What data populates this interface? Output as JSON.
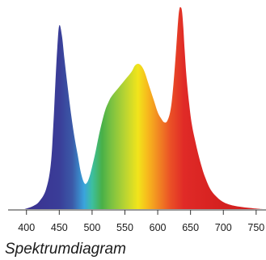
{
  "caption": "Spektrumdiagram",
  "chart_data": {
    "type": "area",
    "title": "",
    "xlabel": "",
    "ylabel": "",
    "xlim": [
      372,
      765
    ],
    "ylim": [
      0,
      1
    ],
    "grid": false,
    "legend": "none",
    "fill": "visible-spectrum-gradient",
    "x_ticks": [
      400,
      450,
      500,
      550,
      600,
      650,
      700,
      750
    ],
    "x_tick_labels": [
      "400",
      "450",
      "500",
      "550",
      "600",
      "650",
      "700",
      "750"
    ],
    "series": [
      {
        "x": [
          397,
          410,
          420,
          430,
          437,
          441,
          444,
          447,
          450,
          454,
          458,
          463,
          468,
          473,
          478,
          483,
          488,
          492,
          496,
          500,
          505,
          510,
          515,
          520,
          525,
          530,
          540,
          550,
          560,
          565,
          570,
          575,
          580,
          585,
          590,
          595,
          600,
          605,
          610,
          615,
          620,
          624,
          628,
          631,
          633,
          635,
          637,
          639,
          641,
          644,
          648,
          652,
          657,
          662,
          667,
          672,
          680,
          690,
          700,
          712,
          725,
          740,
          752,
          760
        ],
        "y": [
          0.0,
          0.015,
          0.04,
          0.1,
          0.22,
          0.42,
          0.62,
          0.8,
          0.91,
          0.86,
          0.74,
          0.6,
          0.47,
          0.36,
          0.27,
          0.18,
          0.13,
          0.13,
          0.16,
          0.21,
          0.28,
          0.36,
          0.43,
          0.49,
          0.53,
          0.56,
          0.6,
          0.64,
          0.68,
          0.71,
          0.72,
          0.71,
          0.68,
          0.63,
          0.58,
          0.53,
          0.48,
          0.45,
          0.43,
          0.44,
          0.5,
          0.62,
          0.79,
          0.93,
          0.99,
          1.0,
          0.98,
          0.9,
          0.79,
          0.65,
          0.52,
          0.42,
          0.34,
          0.27,
          0.21,
          0.16,
          0.1,
          0.06,
          0.035,
          0.02,
          0.012,
          0.006,
          0.002,
          0.0
        ]
      }
    ],
    "colors": {
      "axis": "#333333",
      "gradient_stops": [
        {
          "nm": 380,
          "color": "#3a2c8c"
        },
        {
          "nm": 450,
          "color": "#3a3d98"
        },
        {
          "nm": 470,
          "color": "#3b5aa8"
        },
        {
          "nm": 488,
          "color": "#3aa4dd"
        },
        {
          "nm": 500,
          "color": "#3dbfa0"
        },
        {
          "nm": 515,
          "color": "#48b048"
        },
        {
          "nm": 530,
          "color": "#7cc241"
        },
        {
          "nm": 550,
          "color": "#b8d432"
        },
        {
          "nm": 570,
          "color": "#f2e41b"
        },
        {
          "nm": 585,
          "color": "#f7b81d"
        },
        {
          "nm": 600,
          "color": "#f28b22"
        },
        {
          "nm": 620,
          "color": "#ea4f26"
        },
        {
          "nm": 640,
          "color": "#e02a27"
        },
        {
          "nm": 700,
          "color": "#d4201f"
        }
      ]
    }
  }
}
